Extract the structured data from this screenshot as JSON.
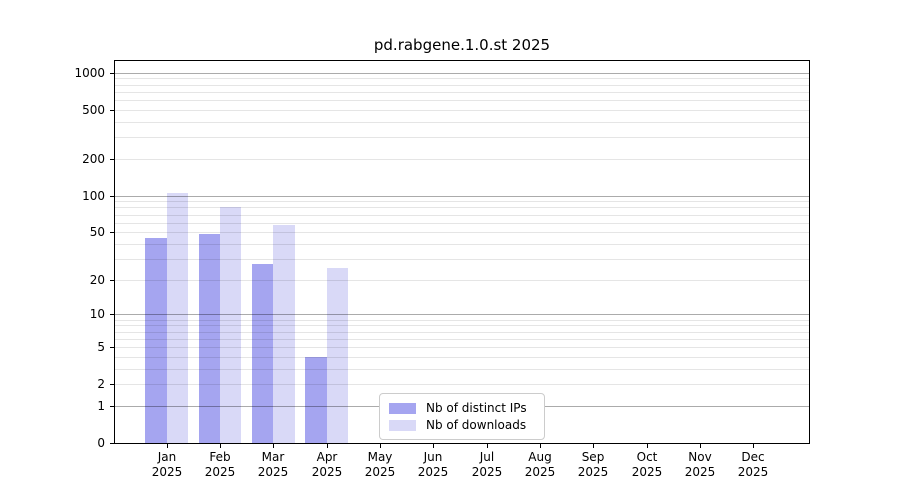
{
  "title": "pd.rabgene.1.0.st 2025",
  "chart_data": {
    "type": "bar",
    "title": "pd.rabgene.1.0.st 2025",
    "categories": [
      "Jan 2025",
      "Feb 2025",
      "Mar 2025",
      "Apr 2025",
      "May 2025",
      "Jun 2025",
      "Jul 2025",
      "Aug 2025",
      "Sep 2025",
      "Oct 2025",
      "Nov 2025",
      "Dec 2025"
    ],
    "series": [
      {
        "key": "distinct-ips",
        "name": "Nb of distinct IPs",
        "color": "#a5a5f0",
        "values": [
          45,
          48,
          27,
          4,
          0,
          0,
          0,
          0,
          0,
          0,
          0,
          0
        ]
      },
      {
        "key": "downloads",
        "name": "Nb of downloads",
        "color": "#d9d9f7",
        "values": [
          105,
          81,
          57,
          25,
          0,
          0,
          0,
          0,
          0,
          0,
          0,
          0
        ]
      }
    ],
    "xlabel": "",
    "ylabel": "",
    "yscale": "log1p",
    "ylim": [
      0,
      1280
    ],
    "yticks": [
      1000,
      500,
      200,
      100,
      50,
      20,
      10,
      5,
      2,
      1,
      0
    ],
    "grid": "horizontal major (1,10,100,1000) + minor (2-9 per decade)",
    "legend_position": "lower center inside plot",
    "bar_color_major": "#a5a5f0",
    "bar_color_minor": "#d9d9f7"
  }
}
